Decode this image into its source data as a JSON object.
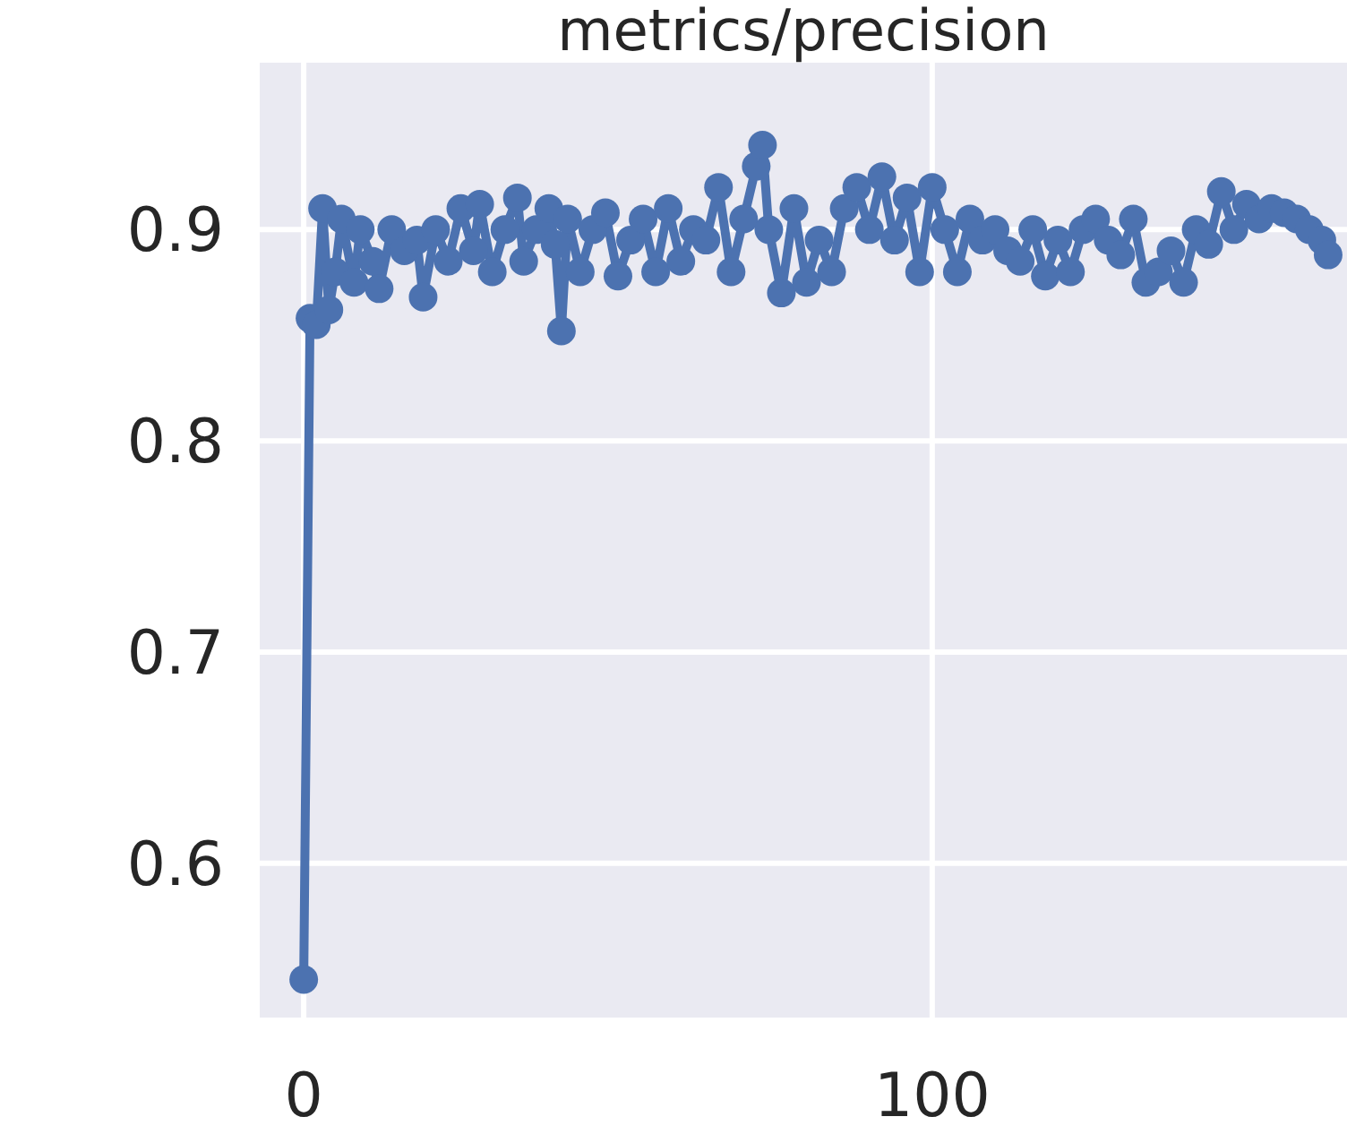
{
  "chart_data": {
    "type": "line",
    "title": "metrics/precision",
    "marker": "circle",
    "grid": true,
    "xlim": [
      -7,
      166
    ],
    "ylim": [
      0.527,
      0.979
    ],
    "xticks": [
      0,
      100
    ],
    "yticks": [
      0.6,
      0.7,
      0.8,
      0.9
    ],
    "series": [
      {
        "color": "#4c72b0",
        "x": [
          0,
          1,
          2,
          3,
          4,
          5,
          6,
          8,
          9,
          11,
          12,
          14,
          16,
          18,
          19,
          21,
          23,
          25,
          27,
          28,
          30,
          32,
          34,
          35,
          37,
          39,
          40,
          41,
          42,
          44,
          46,
          48,
          50,
          52,
          54,
          56,
          58,
          60,
          62,
          64,
          66,
          68,
          70,
          72,
          73,
          74,
          76,
          78,
          80,
          82,
          84,
          86,
          88,
          90,
          92,
          94,
          96,
          98,
          100,
          102,
          104,
          106,
          108,
          110,
          112,
          114,
          116,
          118,
          120,
          122,
          124,
          126,
          128,
          130,
          132,
          134,
          136,
          138,
          140,
          142,
          144,
          146,
          148,
          150,
          152,
          154,
          156,
          158,
          160,
          162,
          163
        ],
        "values": [
          0.545,
          0.858,
          0.855,
          0.91,
          0.862,
          0.88,
          0.905,
          0.875,
          0.9,
          0.885,
          0.872,
          0.9,
          0.89,
          0.895,
          0.868,
          0.9,
          0.885,
          0.91,
          0.89,
          0.912,
          0.88,
          0.9,
          0.915,
          0.885,
          0.9,
          0.91,
          0.893,
          0.852,
          0.905,
          0.88,
          0.9,
          0.908,
          0.878,
          0.895,
          0.905,
          0.88,
          0.91,
          0.885,
          0.9,
          0.895,
          0.92,
          0.88,
          0.905,
          0.93,
          0.94,
          0.9,
          0.87,
          0.91,
          0.875,
          0.895,
          0.88,
          0.91,
          0.92,
          0.9,
          0.925,
          0.895,
          0.915,
          0.88,
          0.92,
          0.9,
          0.88,
          0.905,
          0.895,
          0.9,
          0.89,
          0.885,
          0.9,
          0.878,
          0.895,
          0.88,
          0.9,
          0.905,
          0.895,
          0.888,
          0.905,
          0.875,
          0.88,
          0.89,
          0.875,
          0.9,
          0.893,
          0.918,
          0.9,
          0.912,
          0.905,
          0.91,
          0.908,
          0.905,
          0.9,
          0.895,
          0.888
        ]
      }
    ]
  }
}
